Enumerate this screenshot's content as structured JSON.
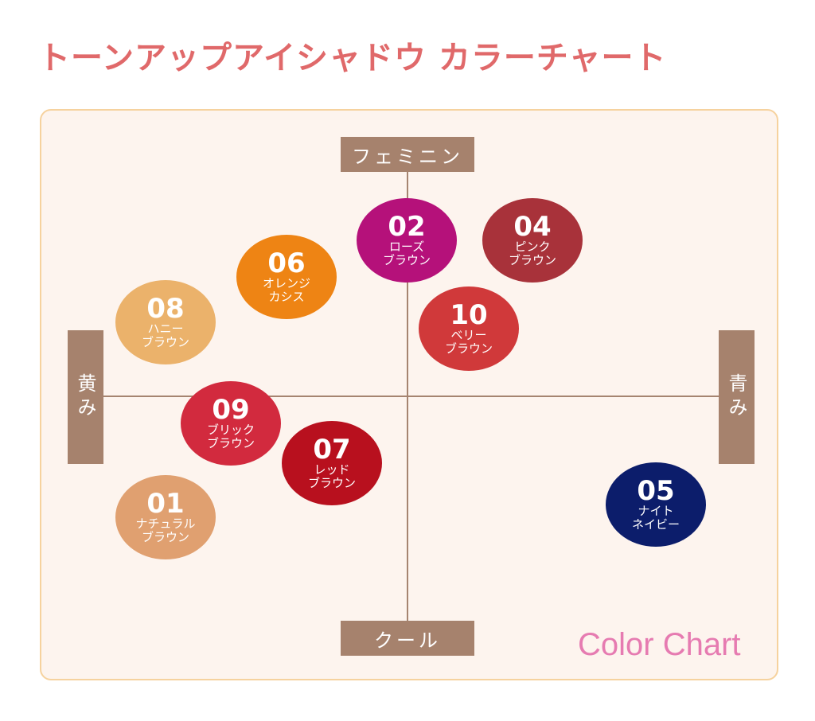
{
  "title": "トーンアップアイシャドウ カラーチャート",
  "axes": {
    "top": "フェミニン",
    "bottom": "クール",
    "left": "黄み",
    "right": "青み"
  },
  "colors": {
    "title": "#e0696a",
    "axis_box": "#a6826d",
    "panel_bg": "#fdf4ee",
    "panel_border": "#f6d29e",
    "footer": "#e67bb1"
  },
  "shades": [
    {
      "num": "02",
      "line1": "ローズ",
      "line2": "ブラウン",
      "color": "#b5117a"
    },
    {
      "num": "04",
      "line1": "ピンク",
      "line2": "ブラウン",
      "color": "#a8323a"
    },
    {
      "num": "06",
      "line1": "オレンジ",
      "line2": "カシス",
      "color": "#ee8414"
    },
    {
      "num": "08",
      "line1": "ハニー",
      "line2": "ブラウン",
      "color": "#ebb26b"
    },
    {
      "num": "10",
      "line1": "ベリー",
      "line2": "ブラウン",
      "color": "#d0393a"
    },
    {
      "num": "09",
      "line1": "ブリック",
      "line2": "ブラウン",
      "color": "#d22a3e"
    },
    {
      "num": "07",
      "line1": "レッド",
      "line2": "ブラウン",
      "color": "#b8101e"
    },
    {
      "num": "01",
      "line1": "ナチュラル",
      "line2": "ブラウン",
      "color": "#e0a070"
    },
    {
      "num": "05",
      "line1": "ナイト",
      "line2": "ネイビー",
      "color": "#0c1d6b"
    }
  ],
  "footer": "Color Chart"
}
